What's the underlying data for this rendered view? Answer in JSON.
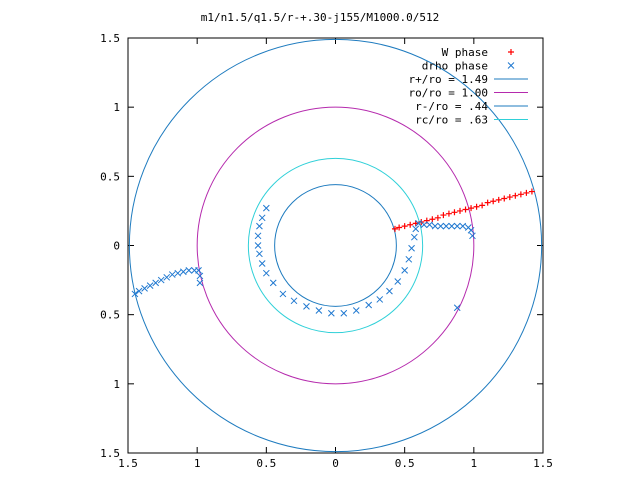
{
  "chart_data": {
    "type": "scatter",
    "title": "m1/n1.5/q1.5/r-+.30-j155/M1000.0/512",
    "xlabel": "",
    "ylabel": "",
    "xlim": [
      -1.5,
      1.5
    ],
    "ylim": [
      -1.5,
      1.5
    ],
    "x_ticks": [
      -1.5,
      -1,
      -0.5,
      0,
      0.5,
      1,
      1.5
    ],
    "y_ticks": [
      -1.5,
      -1,
      -0.5,
      0,
      0.5,
      1,
      1.5
    ],
    "x_tick_labels": [
      "1.5",
      "1",
      "0.5",
      "0",
      "0.5",
      "1",
      "1.5"
    ],
    "y_tick_labels": [
      "1.5",
      "1",
      "0.5",
      "0",
      "0.5",
      "1",
      "1.5"
    ],
    "grid": false,
    "legend_position": "top-right",
    "series": [
      {
        "name": "W phase",
        "marker": "plus",
        "color": "#ff0000",
        "points": [
          [
            0.43,
            0.12
          ],
          [
            0.46,
            0.13
          ],
          [
            0.5,
            0.14
          ],
          [
            0.54,
            0.15
          ],
          [
            0.58,
            0.16
          ],
          [
            0.62,
            0.17
          ],
          [
            0.66,
            0.18
          ],
          [
            0.7,
            0.19
          ],
          [
            0.74,
            0.2
          ],
          [
            0.78,
            0.22
          ],
          [
            0.82,
            0.23
          ],
          [
            0.86,
            0.24
          ],
          [
            0.9,
            0.25
          ],
          [
            0.94,
            0.26
          ],
          [
            0.98,
            0.27
          ],
          [
            1.02,
            0.28
          ],
          [
            1.06,
            0.29
          ],
          [
            1.1,
            0.31
          ],
          [
            1.14,
            0.32
          ],
          [
            1.18,
            0.33
          ],
          [
            1.22,
            0.34
          ],
          [
            1.26,
            0.35
          ],
          [
            1.3,
            0.36
          ],
          [
            1.34,
            0.37
          ],
          [
            1.38,
            0.38
          ],
          [
            1.42,
            0.39
          ]
        ]
      },
      {
        "name": "drho phase",
        "marker": "cross",
        "color": "#1f78d0",
        "points": [
          [
            -1.45,
            -0.35
          ],
          [
            -1.42,
            -0.33
          ],
          [
            -1.38,
            -0.31
          ],
          [
            -1.34,
            -0.29
          ],
          [
            -1.3,
            -0.27
          ],
          [
            -1.26,
            -0.25
          ],
          [
            -1.22,
            -0.23
          ],
          [
            -1.18,
            -0.21
          ],
          [
            -1.14,
            -0.2
          ],
          [
            -1.1,
            -0.19
          ],
          [
            -1.06,
            -0.18
          ],
          [
            -1.02,
            -0.18
          ],
          [
            -0.99,
            -0.18
          ],
          [
            -0.98,
            -0.22
          ],
          [
            -0.98,
            -0.27
          ],
          [
            -0.5,
            0.27
          ],
          [
            -0.53,
            0.2
          ],
          [
            -0.55,
            0.14
          ],
          [
            -0.56,
            0.07
          ],
          [
            -0.56,
            0.0
          ],
          [
            -0.55,
            -0.06
          ],
          [
            -0.53,
            -0.13
          ],
          [
            -0.5,
            -0.2
          ],
          [
            -0.45,
            -0.27
          ],
          [
            -0.38,
            -0.35
          ],
          [
            -0.3,
            -0.4
          ],
          [
            -0.21,
            -0.44
          ],
          [
            -0.12,
            -0.47
          ],
          [
            -0.03,
            -0.49
          ],
          [
            0.06,
            -0.49
          ],
          [
            0.15,
            -0.47
          ],
          [
            0.24,
            -0.43
          ],
          [
            0.32,
            -0.39
          ],
          [
            0.39,
            -0.33
          ],
          [
            0.45,
            -0.26
          ],
          [
            0.5,
            -0.18
          ],
          [
            0.53,
            -0.1
          ],
          [
            0.55,
            -0.02
          ],
          [
            0.57,
            0.06
          ],
          [
            0.58,
            0.12
          ],
          [
            0.6,
            0.16
          ],
          [
            0.64,
            0.15
          ],
          [
            0.68,
            0.15
          ],
          [
            0.72,
            0.14
          ],
          [
            0.76,
            0.14
          ],
          [
            0.8,
            0.14
          ],
          [
            0.84,
            0.14
          ],
          [
            0.88,
            0.14
          ],
          [
            0.92,
            0.14
          ],
          [
            0.96,
            0.13
          ],
          [
            0.98,
            0.11
          ],
          [
            0.99,
            0.07
          ],
          [
            0.88,
            -0.45
          ]
        ]
      },
      {
        "name": "r+/ro = 1.49",
        "type": "circle",
        "color": "#1e7bbf",
        "radius": 1.49
      },
      {
        "name": "ro/ro = 1.00",
        "type": "circle",
        "color": "#b52aad",
        "radius": 1.0
      },
      {
        "name": "r-/ro = .44",
        "type": "circle",
        "color": "#1e7bbf",
        "radius": 0.44
      },
      {
        "name": "rc/ro = .63",
        "type": "circle",
        "color": "#2fd0d8",
        "radius": 0.63
      }
    ]
  }
}
